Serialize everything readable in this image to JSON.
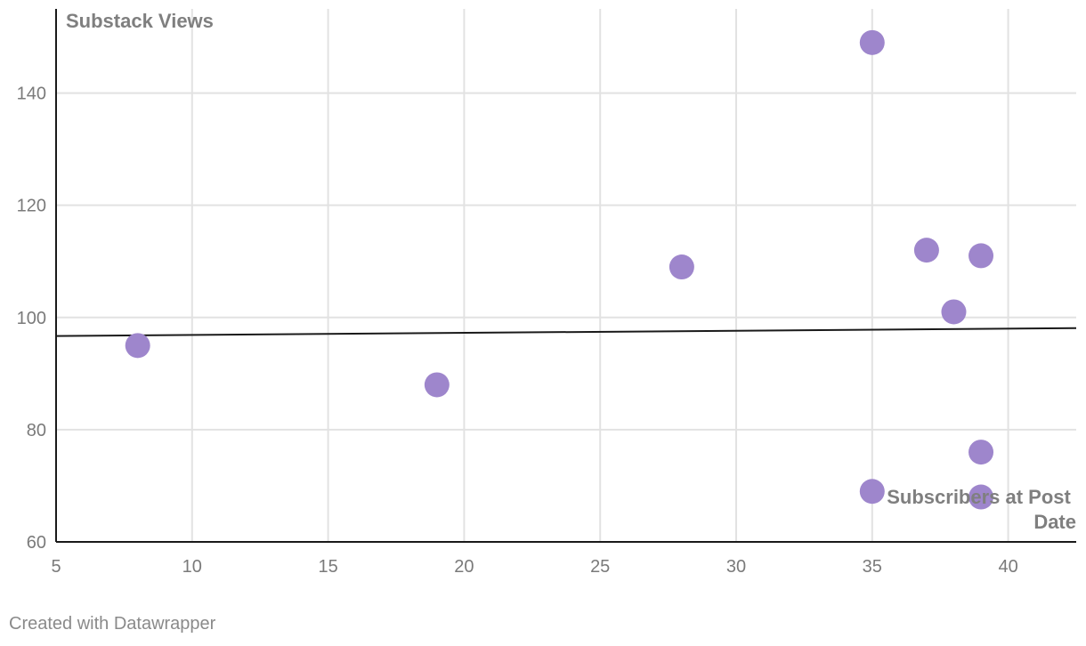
{
  "credit": "Created with Datawrapper",
  "chart_data": {
    "type": "scatter",
    "title": "",
    "xlabel": "Subscribers at Post Date",
    "ylabel": "Substack Views",
    "xlim": [
      5,
      42.5
    ],
    "ylim": [
      60,
      155
    ],
    "xticks": [
      5,
      10,
      15,
      20,
      25,
      30,
      35,
      40
    ],
    "yticks": [
      60,
      80,
      100,
      120,
      140
    ],
    "grid": true,
    "points": [
      {
        "x": 8,
        "y": 95
      },
      {
        "x": 19,
        "y": 88
      },
      {
        "x": 28,
        "y": 109
      },
      {
        "x": 35,
        "y": 149
      },
      {
        "x": 35,
        "y": 69
      },
      {
        "x": 37,
        "y": 112
      },
      {
        "x": 38,
        "y": 101
      },
      {
        "x": 39,
        "y": 111
      },
      {
        "x": 39,
        "y": 76
      },
      {
        "x": 39,
        "y": 68
      }
    ],
    "trendline": {
      "x": [
        5,
        42.5
      ],
      "y": [
        96.7,
        98.1
      ]
    },
    "colors": {
      "point": "#9e86cc",
      "trendline": "#1a1a1a",
      "grid": "#e2e2e2",
      "axis": "#1a1a1a"
    }
  }
}
